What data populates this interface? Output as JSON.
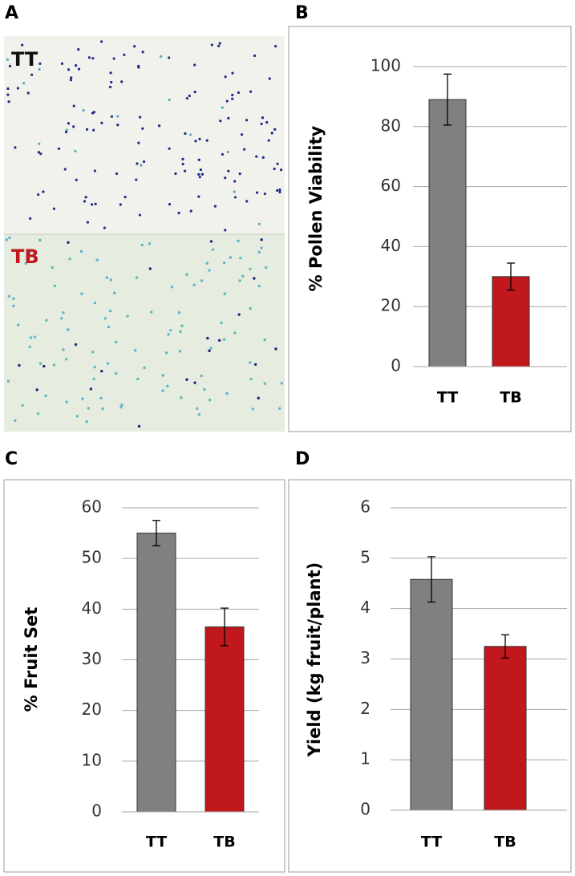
{
  "panel_labels": [
    "A",
    "B",
    "C",
    "D"
  ],
  "micrograph": {
    "labels": [
      "TT",
      "TB"
    ]
  },
  "chart_data": [
    {
      "type": "bar",
      "ylabel": "% Pollen Viability",
      "categories": [
        "TT",
        "TB"
      ],
      "values": [
        89,
        30
      ],
      "errors": [
        8.5,
        4.5
      ],
      "colors": [
        "#808080",
        "#c0181c"
      ],
      "ylim": [
        0,
        100
      ],
      "yticks": [
        0,
        20,
        40,
        60,
        80,
        100
      ],
      "grid": true
    },
    {
      "type": "bar",
      "ylabel": "% Fruit Set",
      "categories": [
        "TT",
        "TB"
      ],
      "values": [
        55,
        36.5
      ],
      "errors": [
        2.5,
        3.7
      ],
      "colors": [
        "#808080",
        "#c0181c"
      ],
      "ylim": [
        0,
        60
      ],
      "yticks": [
        0,
        10,
        20,
        30,
        40,
        50,
        60
      ],
      "grid": true
    },
    {
      "type": "bar",
      "ylabel": "Yield (kg fruit/plant)",
      "categories": [
        "TT",
        "TB"
      ],
      "values": [
        4.58,
        3.25
      ],
      "errors": [
        0.45,
        0.23
      ],
      "colors": [
        "#808080",
        "#c0181c"
      ],
      "ylim": [
        0,
        6
      ],
      "yticks": [
        0,
        1,
        2,
        3,
        4,
        5,
        6
      ],
      "grid": true
    }
  ]
}
